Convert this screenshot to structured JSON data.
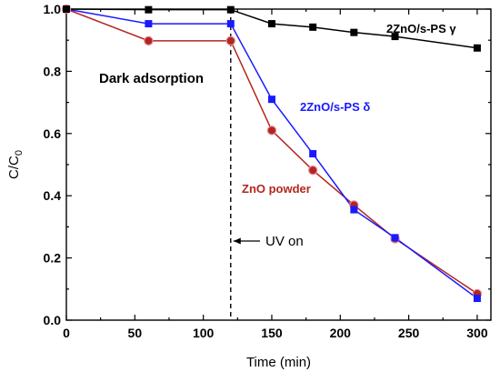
{
  "chart_data": {
    "type": "line",
    "xlabel": "Time (min)",
    "ylabel_main": "C/C",
    "ylabel_sub": "0",
    "xlim": [
      0,
      310
    ],
    "ylim": [
      0,
      1.0
    ],
    "xticks": [
      0,
      50,
      100,
      150,
      200,
      250,
      300
    ],
    "yticks": [
      0.0,
      0.2,
      0.4,
      0.6,
      0.8,
      1.0
    ],
    "ytick_labels": [
      "0.0",
      "0.2",
      "0.4",
      "0.6",
      "0.8",
      "1.0"
    ],
    "series": [
      {
        "name": "2ZnO/s-PS γ",
        "color": "#000000",
        "marker": "square",
        "x": [
          0,
          60,
          120,
          150,
          180,
          210,
          240,
          300
        ],
        "y": [
          1.0,
          0.998,
          0.998,
          0.953,
          0.942,
          0.925,
          0.912,
          0.875
        ]
      },
      {
        "name": "2ZnO/s-PS δ",
        "color": "#1a1aff",
        "marker": "square",
        "x": [
          0,
          60,
          120,
          150,
          180,
          210,
          240,
          300
        ],
        "y": [
          1.0,
          0.953,
          0.953,
          0.71,
          0.535,
          0.355,
          0.265,
          0.07
        ]
      },
      {
        "name": "ZnO powder",
        "color": "#b3261e",
        "marker": "circle",
        "x": [
          0,
          60,
          120,
          150,
          180,
          210,
          240,
          300
        ],
        "y": [
          1.0,
          0.898,
          0.898,
          0.61,
          0.482,
          0.37,
          0.262,
          0.085
        ]
      }
    ],
    "annotations": {
      "dark_adsorption": "Dark adsorption",
      "uv_on": "UV on",
      "uv_on_x": 120
    }
  }
}
